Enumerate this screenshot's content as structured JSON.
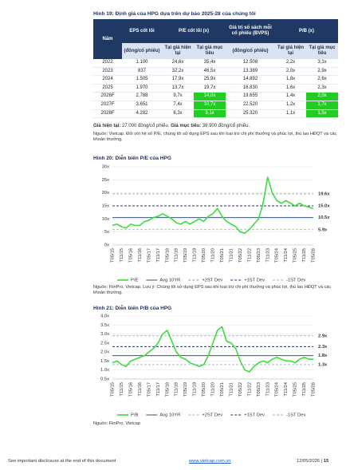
{
  "figure19": {
    "title": "Hình 19: Định giá của HPG dựa trên dự báo 2025-28 của chúng tôi",
    "header": [
      "Năm",
      "EPS cốt lõi",
      "P/E cốt lõi (x)",
      "Giá trị sổ sách mỗi cổ phiếu (BVPS)",
      "P/B (x)"
    ],
    "subheader": [
      "(đồng/cổ phiếu)",
      "Tại giá hiện tại",
      "Tại giá mục tiêu",
      "(đồng/cổ phiếu)",
      "Tại giá hiện tại",
      "Tại giá mục tiêu"
    ],
    "rows": [
      [
        "2022",
        "1.100",
        "24,6x",
        "35,4x",
        "12.508",
        "2,2x",
        "3,1x"
      ],
      [
        "2023",
        "837",
        "32,2x",
        "46,5x",
        "13.389",
        "2,0x",
        "2,9x"
      ],
      [
        "2024",
        "1.505",
        "17,9x",
        "25,9x",
        "14.892",
        "1,8x",
        "2,6x"
      ],
      [
        "2025",
        "1.970",
        "13,7x",
        "19,7x",
        "16.830",
        "1,6x",
        "2,3x"
      ],
      [
        "2026F",
        "2.788",
        "9,7x",
        "14,0x",
        "19.655",
        "1,4x",
        "2,0x"
      ],
      [
        "2027F",
        "3.651",
        "7,4x",
        "10,7x",
        "22.520",
        "1,2x",
        "1,7x"
      ],
      [
        "2028F",
        "4.282",
        "6,3x",
        "9,1x",
        "25.320",
        "1,1x",
        "1,5x"
      ]
    ],
    "price_note": [
      "Giá hiện tại:",
      " 27.000 đồng/cổ phiếu. ",
      "Giá mục tiêu:",
      " 38.900 đồng/cổ phiếu."
    ],
    "source": "Nguồn: Vietcap. Đối với hệ số P/E, chúng tôi sử dụng EPS sau khi loại trừ chi phí thưởng và phúc lợi, thù lao HĐQT và các khoản thưởng."
  },
  "chart_data": [
    {
      "type": "line",
      "title": "Hình 20: Diễn biến P/E của HPG",
      "categories": [
        "T05/15",
        null,
        "T11/15",
        null,
        "T05/16",
        null,
        "T11/16",
        null,
        "T05/17",
        null,
        "T11/17",
        null,
        "T05/18",
        null,
        "T11/18",
        null,
        "T05/19",
        null,
        "T11/19",
        null,
        "T05/20",
        null,
        "T11/20",
        null,
        "T05/21",
        null,
        "T11/21",
        null,
        "T05/22",
        null,
        "T11/22",
        null,
        "T05/23",
        null,
        "T11/23",
        null,
        "T05/24",
        null,
        "T11/24",
        null,
        "T05/25",
        null,
        "T11/25",
        null,
        "T05/26"
      ],
      "series": [
        {
          "name": "P/E",
          "color": "#3fdc3f",
          "values": [
            7.5,
            8,
            7,
            6.5,
            8,
            7.5,
            7.5,
            9,
            9.5,
            10.5,
            11,
            12,
            11,
            10,
            8.5,
            8,
            9,
            8,
            9,
            10,
            9,
            11,
            12,
            14,
            11,
            9,
            8,
            7,
            5,
            4.5,
            6,
            8,
            10,
            16,
            26,
            20,
            17,
            16,
            17,
            16,
            15,
            16,
            15,
            14.5,
            14
          ]
        }
      ],
      "reference_lines": [
        {
          "name": "Avg 10YR",
          "value": 10.5,
          "label": "10.5x",
          "color": "#1f3864",
          "dash": "solid"
        },
        {
          "name": "+2ST Dev",
          "value": 19.6,
          "label": "19.6x",
          "color": "#9a9a9a",
          "dash": "dashed"
        },
        {
          "name": "+1ST Dev",
          "value": 15.0,
          "label": "15.0x",
          "color": "#1f3864",
          "dash": "dashed"
        },
        {
          "name": "-1ST Dev",
          "value": 5.9,
          "label": "5.9x",
          "color": "#9fb0cf",
          "dash": "dashed"
        }
      ],
      "ylim": [
        0,
        30
      ],
      "yticks": [
        {
          "value": 0,
          "label": "0x"
        },
        {
          "value": 5,
          "label": "5x"
        },
        {
          "value": 10,
          "label": "10x"
        },
        {
          "value": 15,
          "label": "15x"
        },
        {
          "value": 20,
          "label": "20x"
        },
        {
          "value": 25,
          "label": "25x"
        },
        {
          "value": 30,
          "label": "30x"
        }
      ],
      "grid": true,
      "source": "Nguồn: FiinPro, Vietcap. Lưu ý: Chúng tôi sử dụng EPS sau khi loại trừ chi phí thưởng và phúc lợi, thù lao HĐQT và các khoản thưởng."
    },
    {
      "type": "line",
      "title": "Hình 21: Diễn biến P/B của HPG",
      "categories": [
        "T05/15",
        null,
        "T11/15",
        null,
        "T05/16",
        null,
        "T11/16",
        null,
        "T05/17",
        null,
        "T11/17",
        null,
        "T05/18",
        null,
        "T11/18",
        null,
        "T05/19",
        null,
        "T11/19",
        null,
        "T05/20",
        null,
        "T11/20",
        null,
        "T05/21",
        null,
        "T11/21",
        null,
        "T05/22",
        null,
        "T11/22",
        null,
        "T05/23",
        null,
        "T11/23",
        null,
        "T05/24",
        null,
        "T11/24",
        null,
        "T05/25",
        null,
        "T11/25",
        null,
        "T05/26"
      ],
      "series": [
        {
          "name": "P/B",
          "color": "#3fdc3f",
          "values": [
            1.4,
            1.5,
            1.3,
            1.2,
            1.5,
            1.6,
            1.7,
            1.8,
            2.0,
            2.2,
            2.5,
            3.0,
            3.2,
            2.6,
            2.0,
            1.7,
            1.6,
            1.4,
            1.3,
            1.2,
            1.3,
            1.8,
            2.5,
            3.2,
            3.4,
            2.6,
            2.5,
            2.2,
            1.5,
            1.0,
            0.9,
            1.2,
            1.4,
            1.5,
            1.4,
            1.6,
            1.7,
            1.6,
            1.5,
            1.5,
            1.4,
            1.6,
            1.7,
            1.6,
            1.6
          ]
        }
      ],
      "reference_lines": [
        {
          "name": "Avg 10YR",
          "value": 1.8,
          "label": "1.8x",
          "color": "#1f3864",
          "dash": "solid"
        },
        {
          "name": "+2ST Dev",
          "value": 2.9,
          "label": "2.9x",
          "color": "#9fb0cf",
          "dash": "dashed"
        },
        {
          "name": "+1ST Dev",
          "value": 2.3,
          "label": "2.3x",
          "color": "#1f3864",
          "dash": "dashed"
        },
        {
          "name": "-1ST Dev",
          "value": 1.3,
          "label": "1.3x",
          "color": "#9fb0cf",
          "dash": "dashed"
        }
      ],
      "ylim": [
        0.5,
        4.0
      ],
      "yticks": [
        {
          "value": 0.5,
          "label": "0.5x"
        },
        {
          "value": 1.0,
          "label": "1.0x"
        },
        {
          "value": 1.5,
          "label": "1.5x"
        },
        {
          "value": 2.0,
          "label": "2.0x"
        },
        {
          "value": 2.5,
          "label": "2.5x"
        },
        {
          "value": 3.0,
          "label": "3.0x"
        },
        {
          "value": 3.5,
          "label": "3.5x"
        },
        {
          "value": 4.0,
          "label": "4.0x"
        }
      ],
      "grid": true,
      "source": "Nguồn: FiinPro, Vietcap"
    }
  ],
  "footer": {
    "disclosure": "See important disclosure at the end of this document",
    "website": "www.vietcap.com.vn",
    "date": "12/05/2026 |",
    "page": "15"
  }
}
